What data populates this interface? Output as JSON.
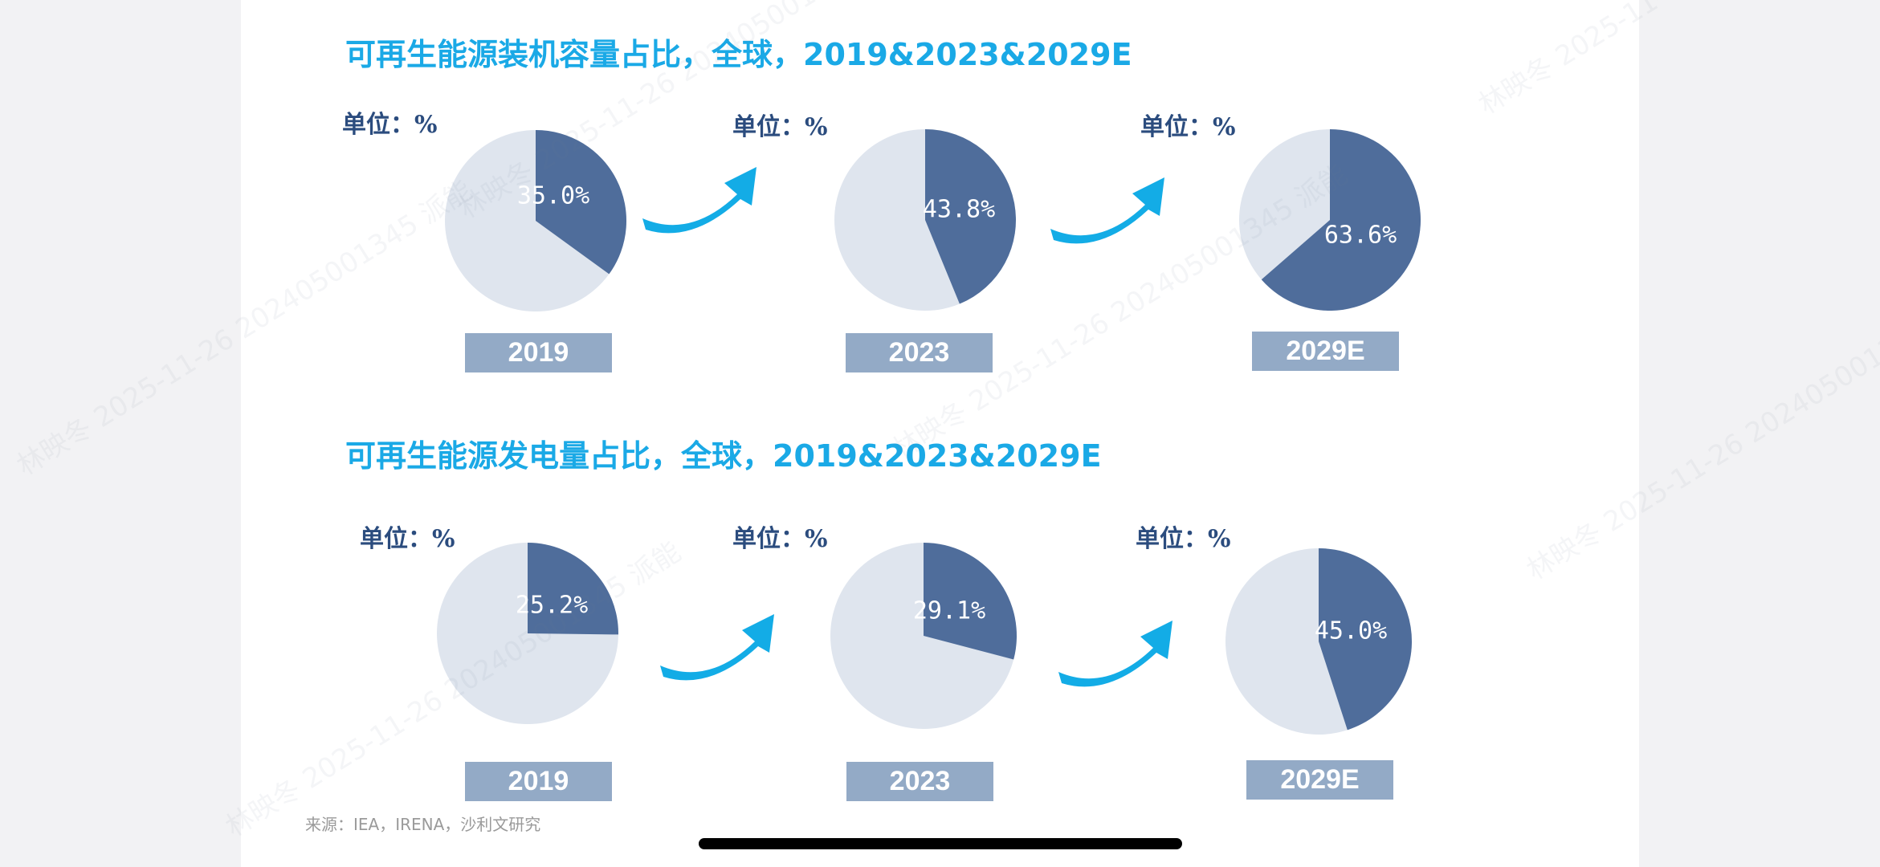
{
  "sections": [
    {
      "title": "可再生能源装机容量占比，全球，2019&2023&2029E",
      "unit": "单位：%",
      "pies": [
        {
          "year": "2019",
          "unit": "单位：%",
          "value": 35.0,
          "label": "35.0%"
        },
        {
          "year": "2023",
          "unit": "单位：%",
          "value": 43.8,
          "label": "43.8%"
        },
        {
          "year": "2029E",
          "unit": "单位：%",
          "value": 63.6,
          "label": "63.6%"
        }
      ]
    },
    {
      "title": "可再生能源发电量占比，全球，2019&2023&2029E",
      "unit": "单位：%",
      "pies": [
        {
          "year": "2019",
          "unit": "单位：%",
          "value": 25.2,
          "label": "25.2%"
        },
        {
          "year": "2023",
          "unit": "单位：%",
          "value": 29.1,
          "label": "29.1%"
        },
        {
          "year": "2029E",
          "unit": "单位：%",
          "value": 45.0,
          "label": "45.0%"
        }
      ]
    }
  ],
  "chart_data": [
    {
      "type": "pie",
      "title": "可再生能源装机容量占比，全球，2019&2023&2029E",
      "unit": "单位：%",
      "categories": [
        "2019",
        "2023",
        "2029E"
      ],
      "values": [
        35.0,
        43.8,
        63.6
      ]
    },
    {
      "type": "pie",
      "title": "可再生能源发电量占比，全球，2019&2023&2029E",
      "unit": "单位：%",
      "categories": [
        "2019",
        "2023",
        "2029E"
      ],
      "values": [
        25.2,
        29.1,
        45.0
      ]
    }
  ],
  "source": "来源：IEA，IRENA，沙利文研究",
  "watermark": "林映冬 2025-11-26 202405001345 派能",
  "colors": {
    "title": "#1aa9e6",
    "slice": "#4f6d9b",
    "remainder": "#dfe5ee",
    "year_box": "#93aac6",
    "arrow": "#13ace6",
    "unit": "#2b4c7e"
  }
}
